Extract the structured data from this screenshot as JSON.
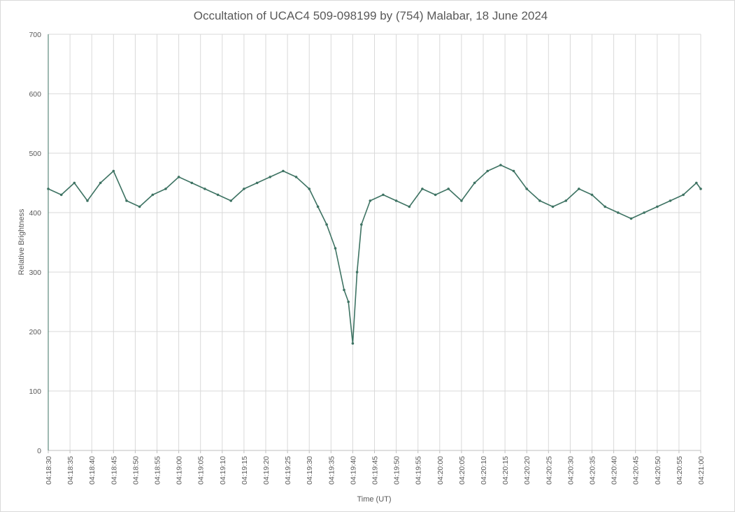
{
  "chart_data": {
    "type": "line",
    "title": "Occultation of UCAC4 509-098199 by (754) Malabar, 18 June 2024",
    "xlabel": "Time (UT)",
    "ylabel": "Relative Brightness",
    "xlim": [
      "04:18:30",
      "04:21:00"
    ],
    "ylim": [
      0,
      700
    ],
    "y_ticks": [
      0,
      100,
      200,
      300,
      400,
      500,
      600,
      700
    ],
    "x_ticks": [
      "04:18:30",
      "04:18:35",
      "04:18:40",
      "04:18:45",
      "04:18:50",
      "04:18:55",
      "04:19:00",
      "04:19:05",
      "04:19:10",
      "04:19:15",
      "04:19:20",
      "04:19:25",
      "04:19:30",
      "04:19:35",
      "04:19:40",
      "04:19:45",
      "04:19:50",
      "04:19:55",
      "04:20:00",
      "04:20:05",
      "04:20:10",
      "04:20:15",
      "04:20:20",
      "04:20:25",
      "04:20:30",
      "04:20:35",
      "04:20:40",
      "04:20:45",
      "04:20:50",
      "04:20:55",
      "04:21:00"
    ],
    "grid": true,
    "legend": "none",
    "series": [
      {
        "color": "#3e7363",
        "marker": "small-circle",
        "x": [
          "04:18:30",
          "04:18:33",
          "04:18:36",
          "04:18:39",
          "04:18:42",
          "04:18:45",
          "04:18:48",
          "04:18:51",
          "04:18:54",
          "04:18:57",
          "04:19:00",
          "04:19:03",
          "04:19:06",
          "04:19:09",
          "04:19:12",
          "04:19:15",
          "04:19:18",
          "04:19:21",
          "04:19:24",
          "04:19:27",
          "04:19:30",
          "04:19:32",
          "04:19:34",
          "04:19:36",
          "04:19:38",
          "04:19:39",
          "04:19:40",
          "04:19:41",
          "04:19:42",
          "04:19:44",
          "04:19:47",
          "04:19:50",
          "04:19:53",
          "04:19:56",
          "04:19:59",
          "04:20:02",
          "04:20:05",
          "04:20:08",
          "04:20:11",
          "04:20:14",
          "04:20:17",
          "04:20:20",
          "04:20:23",
          "04:20:26",
          "04:20:29",
          "04:20:32",
          "04:20:35",
          "04:20:38",
          "04:20:41",
          "04:20:44",
          "04:20:47",
          "04:20:50",
          "04:20:53",
          "04:20:56",
          "04:20:59",
          "04:21:00"
        ],
        "y": [
          440,
          430,
          450,
          420,
          450,
          470,
          420,
          410,
          430,
          440,
          460,
          450,
          440,
          430,
          420,
          440,
          450,
          460,
          470,
          460,
          440,
          410,
          380,
          340,
          270,
          250,
          180,
          300,
          380,
          420,
          430,
          420,
          410,
          440,
          430,
          440,
          420,
          450,
          470,
          480,
          470,
          440,
          420,
          410,
          420,
          440,
          430,
          410,
          400,
          390,
          400,
          410,
          420,
          430,
          450,
          440
        ]
      }
    ]
  }
}
